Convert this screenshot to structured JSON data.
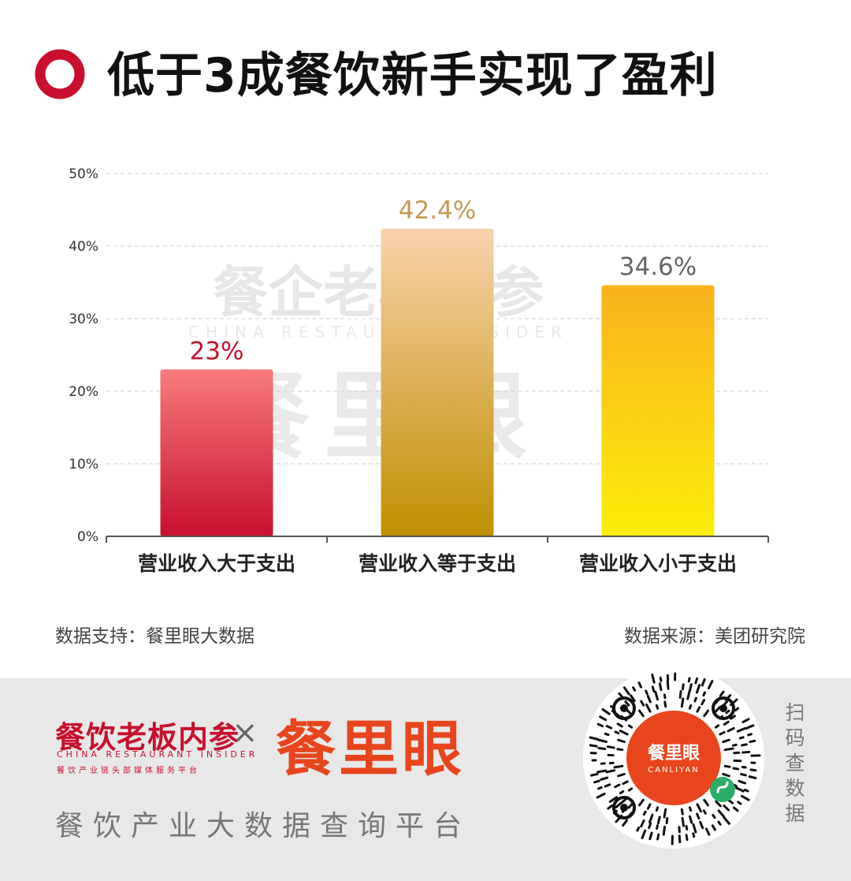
{
  "title": "低于3成餐饮新手实现了盈利",
  "watermark": {
    "line1": "餐企老板内参",
    "line2": "CHINA RESTAURANT INSIDER",
    "line3": "餐里眼"
  },
  "chart_data": {
    "type": "bar",
    "categories": [
      "营业收入大于支出",
      "营业收入等于支出",
      "营业收入小于支出"
    ],
    "values": [
      23,
      42.4,
      34.6
    ],
    "value_labels": [
      "23%",
      "42.4%",
      "34.6%"
    ],
    "ylim": [
      0,
      50
    ],
    "yticks": [
      "0%",
      "10%",
      "20%",
      "30%",
      "40%",
      "50%"
    ],
    "ytick_values": [
      0,
      10,
      20,
      30,
      40,
      50
    ],
    "grid": true,
    "bar_colors": [
      [
        "#f77b7b",
        "#c8102e"
      ],
      [
        "#f8d2ac",
        "#c09000"
      ],
      [
        "#f9b21e",
        "#fbee08"
      ]
    ],
    "label_colors": [
      "#c8102e",
      "#c59a55",
      "#666666"
    ]
  },
  "notes": {
    "left": "数据支持：餐里眼大数据",
    "right": "数据来源：美团研究院"
  },
  "footer": {
    "brand_cn": "餐饮老板内参",
    "brand_en": "CHINA RESTAURANT INSIDER",
    "brand_sub": "餐饮产业链头部媒体服务平台",
    "cross": "×",
    "brand_main": "餐里眼",
    "tagline": "餐饮产业大数据查询平台",
    "qr_title": "餐里眼",
    "qr_sub": "CANLIYAN",
    "scan": "扫码查数据"
  },
  "colors": {
    "accent": "#c8102e",
    "brand_orange": "#e8451c"
  }
}
